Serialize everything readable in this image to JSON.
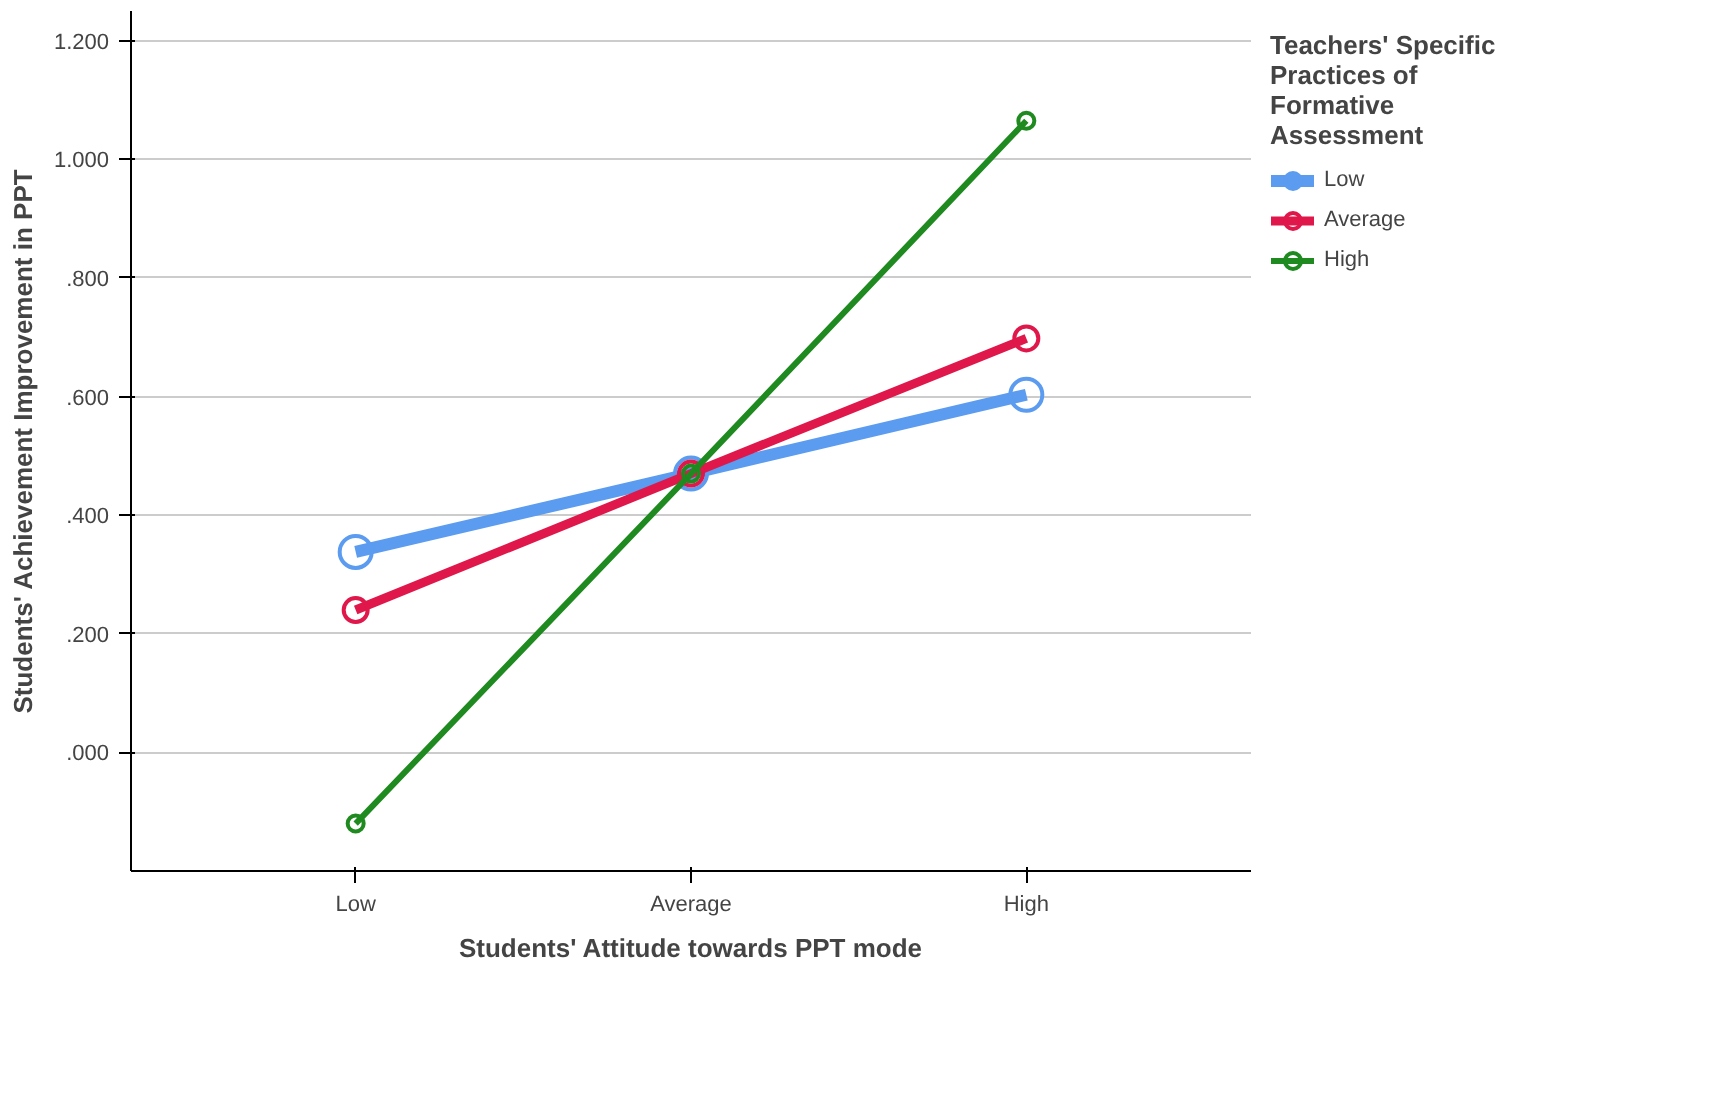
{
  "chart_data": {
    "type": "line",
    "xlabel": "Students' Attitude towards PPT mode",
    "ylabel": "Students' Achievement Improvement in PPT",
    "legend_title": "Teachers' Specific Practices of Formative Assessment",
    "categories": [
      "Low",
      "Average",
      "High"
    ],
    "series": [
      {
        "name": "Low",
        "color": "#5b9bf0",
        "values": [
          0.338,
          0.47,
          0.603
        ]
      },
      {
        "name": "Average",
        "color": "#e0174a",
        "values": [
          0.24,
          0.47,
          0.698
        ]
      },
      {
        "name": "High",
        "color": "#1f8a1f",
        "values": [
          -0.12,
          0.47,
          1.065
        ]
      }
    ],
    "ylim": [
      -0.2,
      1.25
    ],
    "yticks": [
      {
        "value": 0,
        "label": ".000"
      },
      {
        "value": 0.2,
        "label": ".200"
      },
      {
        "value": 0.4,
        "label": ".400"
      },
      {
        "value": 0.6,
        "label": ".600"
      },
      {
        "value": 0.8,
        "label": ".800"
      },
      {
        "value": 1.0,
        "label": "1.000"
      },
      {
        "value": 1.2,
        "label": "1.200"
      }
    ],
    "grid": "y",
    "legend": "right",
    "marker": "circle",
    "line_style": "solid"
  }
}
